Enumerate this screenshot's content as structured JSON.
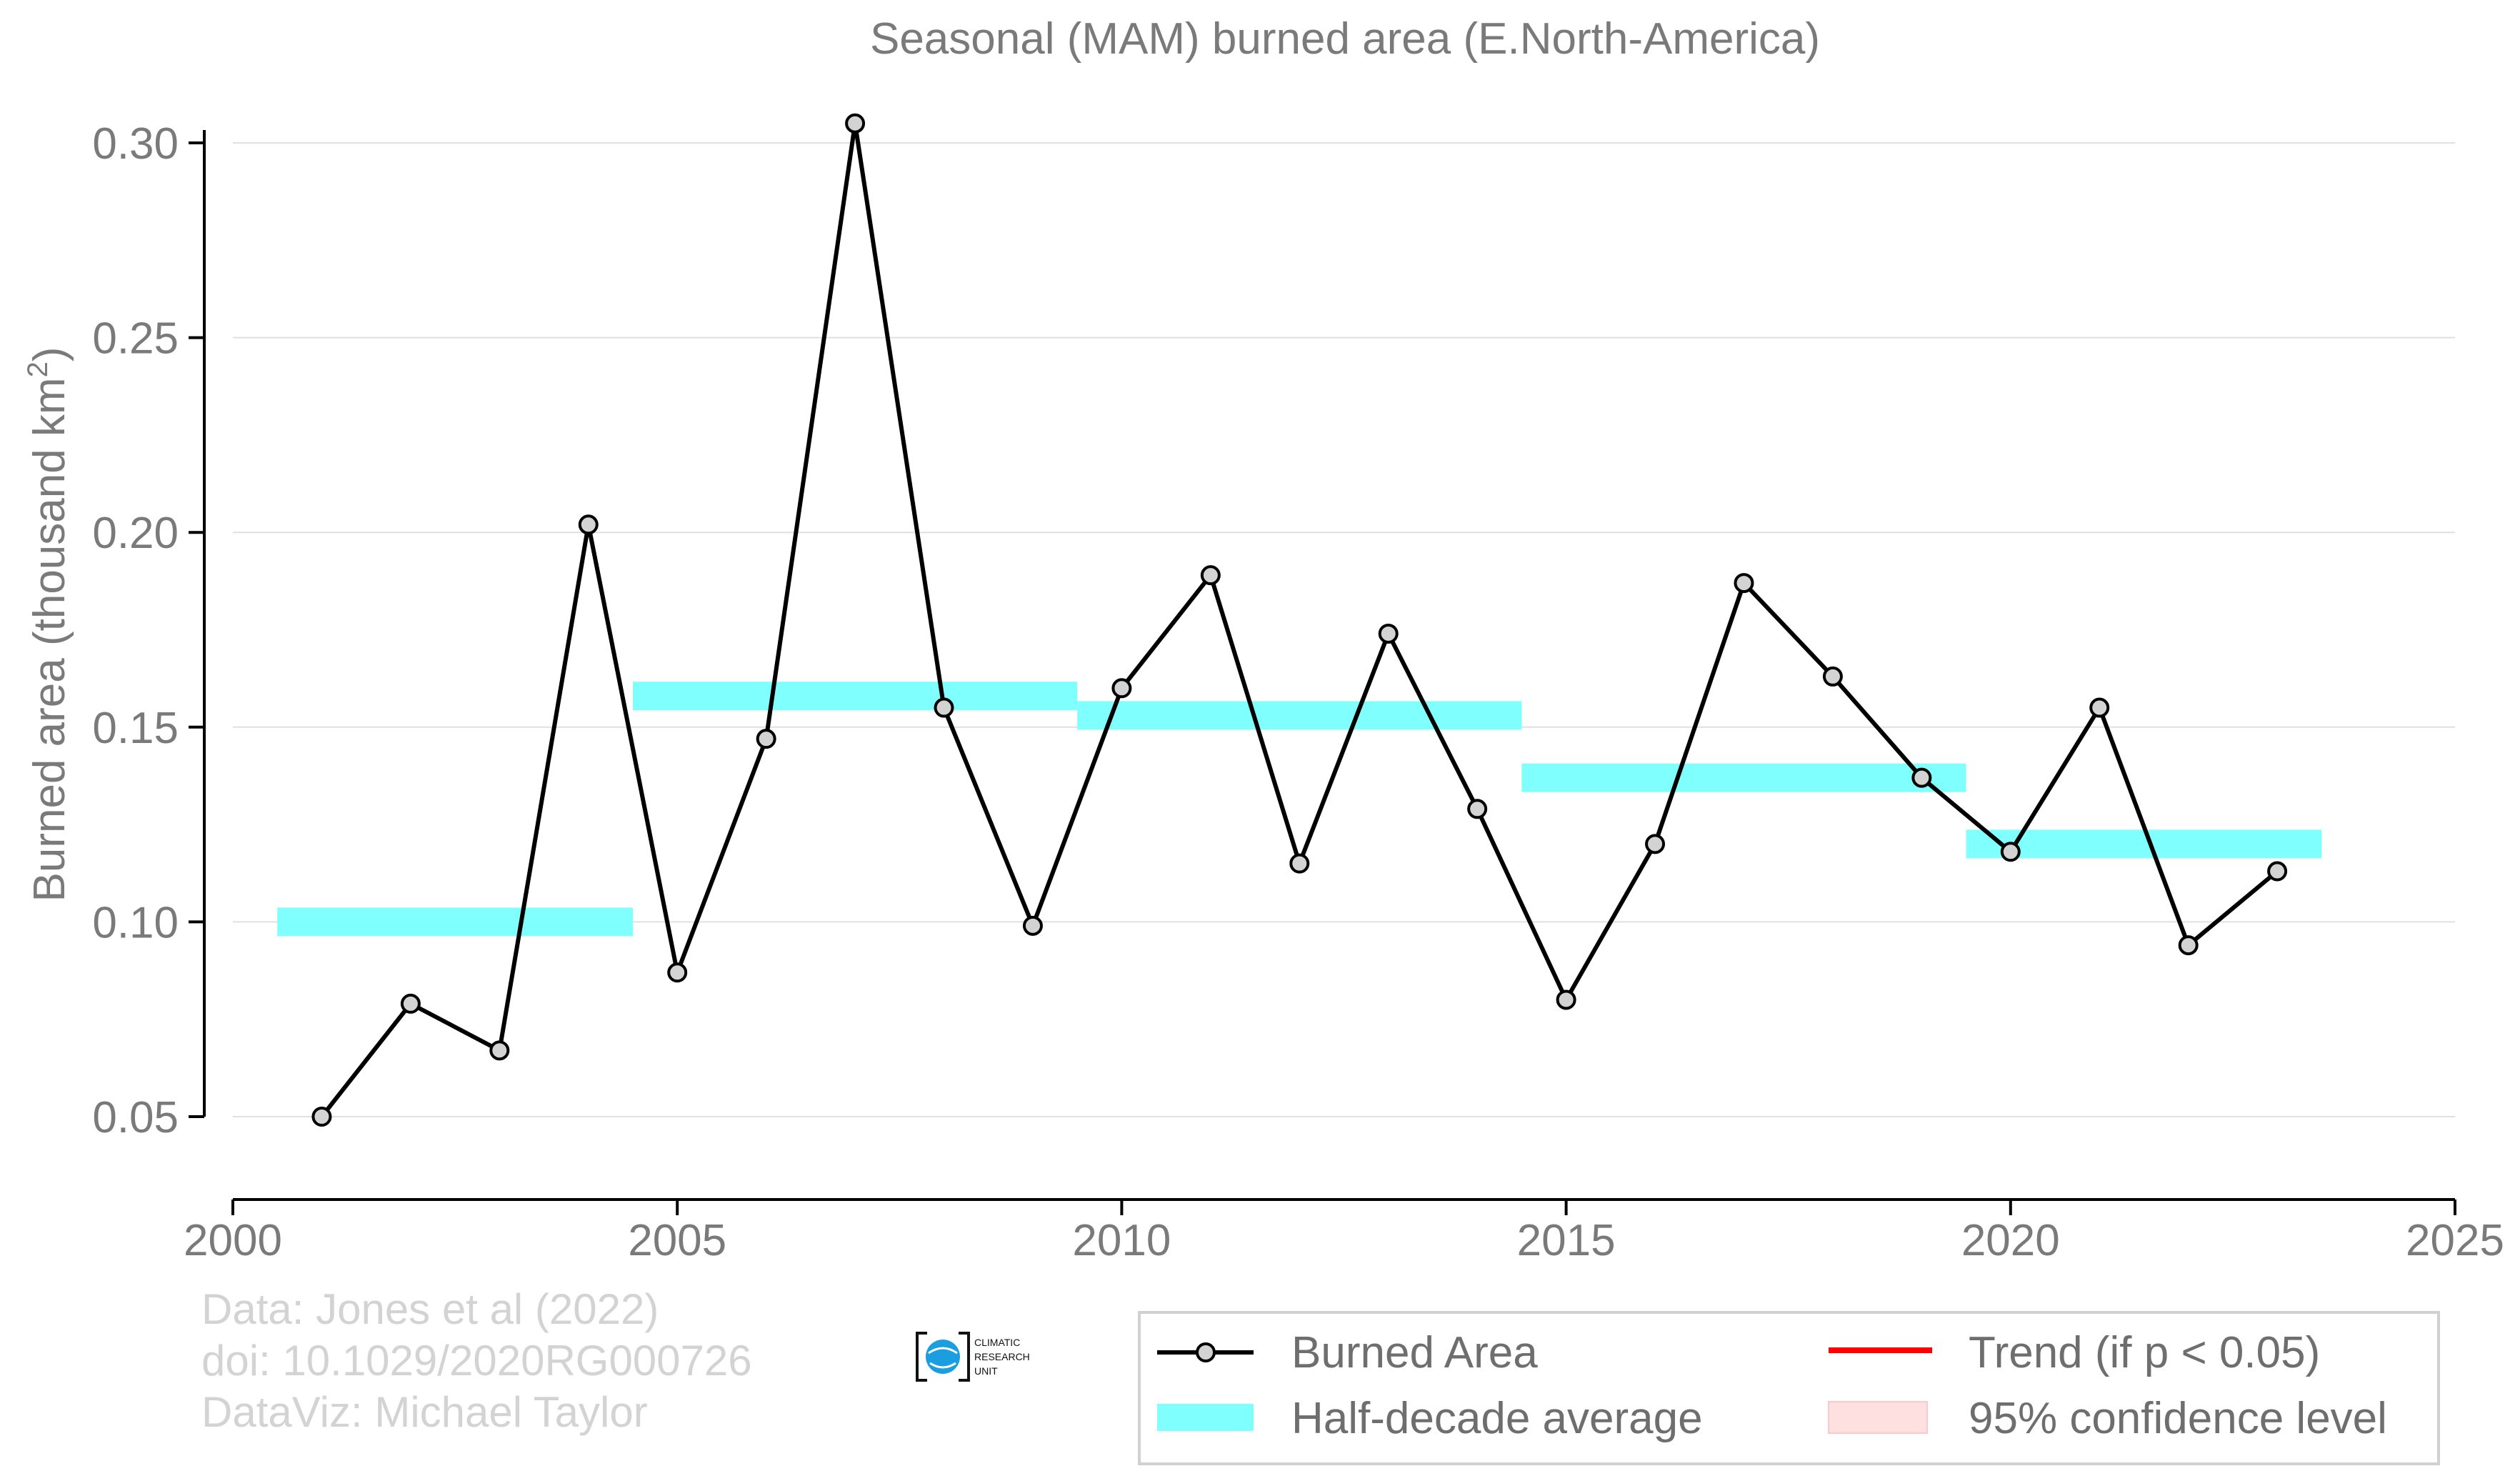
{
  "chart_data": {
    "type": "line",
    "title": "Seasonal (MAM) burned area (E.North-America)",
    "xlabel": "",
    "ylabel": "Burned area (thousand km",
    "ylabel_superscript": "2",
    "ylabel_close": ")",
    "xlim": [
      2000,
      2025
    ],
    "ylim": [
      0.03,
      0.305
    ],
    "x_ticks": [
      2000,
      2005,
      2010,
      2015,
      2020,
      2025
    ],
    "x_tick_labels": [
      "2000",
      "2005",
      "2010",
      "2015",
      "2020",
      "2025"
    ],
    "y_ticks": [
      0.05,
      0.1,
      0.15,
      0.2,
      0.25,
      0.3
    ],
    "y_tick_labels": [
      "0.05",
      "0.10",
      "0.15",
      "0.20",
      "0.25",
      "0.30"
    ],
    "grid": "horizontal",
    "legend_position": "bottom-right",
    "series": [
      {
        "name": "Burned Area",
        "color": "#000000",
        "marker_fill": "#d3d3d3",
        "x": [
          2001,
          2002,
          2003,
          2004,
          2005,
          2006,
          2007,
          2008,
          2009,
          2010,
          2011,
          2012,
          2013,
          2014,
          2015,
          2016,
          2017,
          2018,
          2019,
          2020,
          2021,
          2022,
          2023
        ],
        "y": [
          0.05,
          0.079,
          0.067,
          0.202,
          0.087,
          0.147,
          0.305,
          0.155,
          0.099,
          0.16,
          0.189,
          0.115,
          0.174,
          0.129,
          0.08,
          0.12,
          0.187,
          0.163,
          0.137,
          0.118,
          0.155,
          0.094,
          0.113
        ]
      }
    ],
    "half_decade_average": {
      "name": "Half-decade average",
      "color": "#80ffff",
      "segments": [
        {
          "start": 2000.5,
          "end": 2004.5,
          "value": 0.1
        },
        {
          "start": 2004.5,
          "end": 2009.5,
          "value": 0.158
        },
        {
          "start": 2009.5,
          "end": 2014.5,
          "value": 0.153
        },
        {
          "start": 2014.5,
          "end": 2019.5,
          "value": 0.137
        },
        {
          "start": 2019.5,
          "end": 2023.5,
          "value": 0.12
        }
      ]
    },
    "legend": [
      {
        "label": "Burned Area",
        "kind": "line-marker",
        "color": "#000000"
      },
      {
        "label": "Trend (if p < 0.05)",
        "kind": "line",
        "color": "#ff0000"
      },
      {
        "label": "Half-decade average",
        "kind": "band",
        "color": "#80ffff"
      },
      {
        "label": "95% confidence level",
        "kind": "patch",
        "color": "#ffe0e0"
      }
    ],
    "credits": [
      "Data: Jones et al (2022)",
      "doi: 10.1029/2020RG000726",
      "DataViz: Michael Taylor"
    ],
    "logo": {
      "lines": [
        "CLIMATIC",
        "RESEARCH",
        "UNIT"
      ]
    }
  }
}
